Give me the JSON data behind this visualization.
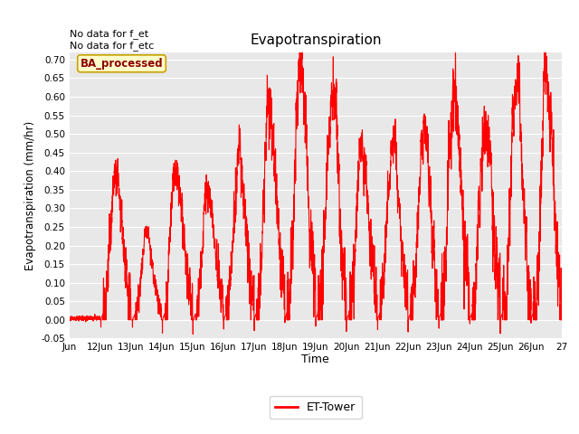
{
  "title": "Evapotranspiration",
  "xlabel": "Time",
  "ylabel": "Evapotranspiration (mm/hr)",
  "ylim": [
    -0.05,
    0.72
  ],
  "line_color": "#ff0000",
  "line_width": 0.8,
  "legend_label": "ET-Tower",
  "annotation_text": "No data for f_et\nNo data for f_etc",
  "box_label": "BA_processed",
  "background_color": "#ffffff",
  "plot_bg_color": "#e8e8e8",
  "grid_color": "#ffffff",
  "xtick_labels": [
    "Jun",
    "12Jun",
    "13Jun",
    "14Jun",
    "15Jun",
    "16Jun",
    "17Jun",
    "18Jun",
    "19Jun",
    "20Jun",
    "21Jun",
    "22Jun",
    "23Jun",
    "24Jun",
    "25Jun",
    "26Jun",
    "27"
  ],
  "ytick_values": [
    -0.05,
    0.0,
    0.05,
    0.1,
    0.15,
    0.2,
    0.25,
    0.3,
    0.35,
    0.4,
    0.45,
    0.5,
    0.55,
    0.6,
    0.65,
    0.7
  ],
  "day_peaks": [
    0.02,
    0.39,
    0.2,
    0.36,
    0.33,
    0.4,
    0.55,
    0.65,
    0.54,
    0.44,
    0.44,
    0.47,
    0.61,
    0.5,
    0.54,
    0.58,
    0.02
  ],
  "n_days": 16,
  "points_per_day": 288,
  "seed": 12345
}
